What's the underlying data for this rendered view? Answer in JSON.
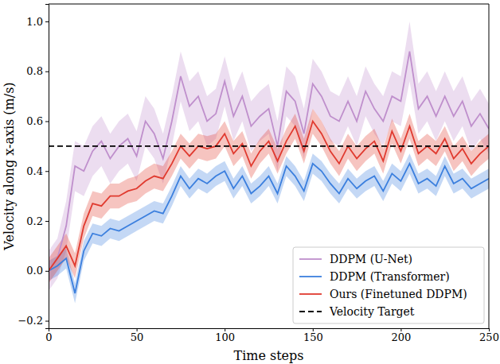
{
  "chart_data": {
    "type": "line",
    "x_label": "Time steps",
    "y_label": "Velocity along x-axis (m/s)",
    "x": [
      0,
      5,
      10,
      15,
      20,
      25,
      30,
      35,
      40,
      45,
      50,
      55,
      60,
      65,
      70,
      75,
      80,
      85,
      90,
      95,
      100,
      105,
      110,
      115,
      120,
      125,
      130,
      135,
      140,
      145,
      150,
      155,
      160,
      165,
      170,
      175,
      180,
      185,
      190,
      195,
      200,
      205,
      210,
      215,
      220,
      225,
      230,
      235,
      240,
      245,
      250
    ],
    "xlim": [
      0,
      250
    ],
    "xticks": [
      0,
      50,
      100,
      150,
      200,
      250
    ],
    "ylim": [
      -0.23,
      1.07
    ],
    "yticks": [
      {
        "value": -0.2,
        "label": "−0.2"
      },
      {
        "value": 0.0,
        "label": "0.0"
      },
      {
        "value": 0.2,
        "label": "0.2"
      },
      {
        "value": 0.4,
        "label": "0.4"
      },
      {
        "value": 0.6,
        "label": "0.6"
      },
      {
        "value": 0.8,
        "label": "0.8"
      },
      {
        "value": 1.0,
        "label": "1.0"
      }
    ],
    "grid": false,
    "legend": "lower right",
    "series": [
      {
        "name": "DDPM (U-Net)",
        "color": "#bf8fcc",
        "line_style": "solid",
        "values": [
          0.0,
          0.05,
          0.18,
          0.42,
          0.4,
          0.48,
          0.52,
          0.45,
          0.5,
          0.53,
          0.46,
          0.6,
          0.55,
          0.45,
          0.6,
          0.78,
          0.66,
          0.7,
          0.6,
          0.63,
          0.76,
          0.62,
          0.7,
          0.58,
          0.62,
          0.65,
          0.5,
          0.72,
          0.68,
          0.55,
          0.75,
          0.7,
          0.62,
          0.6,
          0.68,
          0.6,
          0.72,
          0.65,
          0.6,
          0.7,
          0.68,
          0.88,
          0.65,
          0.7,
          0.62,
          0.7,
          0.62,
          0.68,
          0.58,
          0.63,
          0.57
        ],
        "errors": [
          0.08,
          0.08,
          0.1,
          0.1,
          0.1,
          0.1,
          0.1,
          0.1,
          0.1,
          0.1,
          0.1,
          0.1,
          0.1,
          0.1,
          0.1,
          0.1,
          0.1,
          0.1,
          0.1,
          0.1,
          0.1,
          0.1,
          0.1,
          0.1,
          0.1,
          0.1,
          0.1,
          0.1,
          0.1,
          0.1,
          0.1,
          0.1,
          0.1,
          0.1,
          0.1,
          0.1,
          0.1,
          0.1,
          0.1,
          0.1,
          0.1,
          0.12,
          0.1,
          0.1,
          0.1,
          0.1,
          0.1,
          0.1,
          0.1,
          0.1,
          0.1
        ]
      },
      {
        "name": "DDPM (Transformer)",
        "color": "#3b7fde",
        "line_style": "solid",
        "values": [
          0.0,
          0.02,
          0.05,
          -0.09,
          0.08,
          0.15,
          0.14,
          0.17,
          0.16,
          0.18,
          0.2,
          0.22,
          0.24,
          0.23,
          0.3,
          0.38,
          0.33,
          0.37,
          0.35,
          0.38,
          0.4,
          0.33,
          0.38,
          0.31,
          0.34,
          0.38,
          0.31,
          0.42,
          0.38,
          0.32,
          0.43,
          0.4,
          0.35,
          0.31,
          0.37,
          0.33,
          0.36,
          0.38,
          0.32,
          0.39,
          0.36,
          0.43,
          0.35,
          0.37,
          0.34,
          0.42,
          0.35,
          0.37,
          0.33,
          0.35,
          0.37
        ],
        "errors": [
          0.04,
          0.04,
          0.04,
          0.04,
          0.04,
          0.04,
          0.04,
          0.04,
          0.04,
          0.04,
          0.04,
          0.04,
          0.04,
          0.04,
          0.04,
          0.04,
          0.04,
          0.04,
          0.04,
          0.04,
          0.04,
          0.04,
          0.04,
          0.04,
          0.04,
          0.04,
          0.04,
          0.04,
          0.04,
          0.04,
          0.04,
          0.04,
          0.04,
          0.04,
          0.04,
          0.04,
          0.04,
          0.04,
          0.04,
          0.04,
          0.04,
          0.04,
          0.04,
          0.04,
          0.04,
          0.04,
          0.04,
          0.04,
          0.04,
          0.04,
          0.04
        ]
      },
      {
        "name": "Ours (Finetuned DDPM)",
        "color": "#e03a2f",
        "line_style": "solid",
        "values": [
          0.0,
          0.05,
          0.1,
          0.02,
          0.18,
          0.27,
          0.26,
          0.3,
          0.3,
          0.32,
          0.33,
          0.36,
          0.38,
          0.37,
          0.43,
          0.5,
          0.46,
          0.5,
          0.49,
          0.5,
          0.55,
          0.47,
          0.51,
          0.42,
          0.48,
          0.52,
          0.44,
          0.52,
          0.58,
          0.48,
          0.6,
          0.55,
          0.48,
          0.43,
          0.5,
          0.45,
          0.49,
          0.52,
          0.44,
          0.56,
          0.48,
          0.58,
          0.47,
          0.5,
          0.47,
          0.53,
          0.45,
          0.49,
          0.43,
          0.47,
          0.5
        ],
        "errors": [
          0.05,
          0.05,
          0.05,
          0.05,
          0.05,
          0.05,
          0.05,
          0.05,
          0.05,
          0.05,
          0.05,
          0.05,
          0.05,
          0.05,
          0.05,
          0.05,
          0.05,
          0.05,
          0.05,
          0.05,
          0.05,
          0.05,
          0.05,
          0.05,
          0.05,
          0.05,
          0.05,
          0.05,
          0.05,
          0.05,
          0.05,
          0.05,
          0.05,
          0.05,
          0.05,
          0.05,
          0.05,
          0.05,
          0.05,
          0.05,
          0.05,
          0.05,
          0.05,
          0.05,
          0.05,
          0.05,
          0.05,
          0.05,
          0.05,
          0.05,
          0.05
        ]
      },
      {
        "name": "Velocity Target",
        "color": "#000000",
        "line_style": "dashed",
        "values": [
          0.5,
          0.5,
          0.5,
          0.5,
          0.5,
          0.5,
          0.5,
          0.5,
          0.5,
          0.5,
          0.5,
          0.5,
          0.5,
          0.5,
          0.5,
          0.5,
          0.5,
          0.5,
          0.5,
          0.5,
          0.5,
          0.5,
          0.5,
          0.5,
          0.5,
          0.5,
          0.5,
          0.5,
          0.5,
          0.5,
          0.5,
          0.5,
          0.5,
          0.5,
          0.5,
          0.5,
          0.5,
          0.5,
          0.5,
          0.5,
          0.5,
          0.5,
          0.5,
          0.5,
          0.5,
          0.5,
          0.5,
          0.5,
          0.5,
          0.5,
          0.5
        ]
      }
    ]
  }
}
